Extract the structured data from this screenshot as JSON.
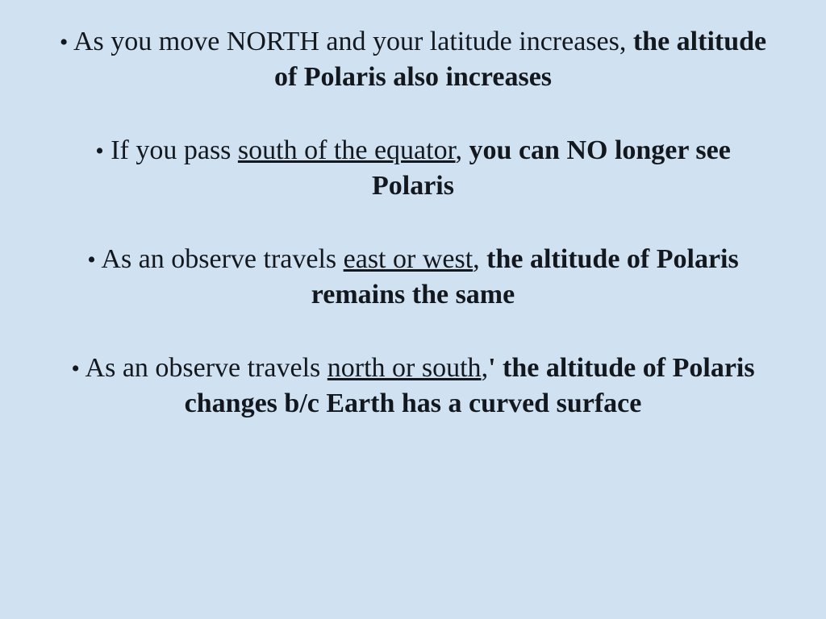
{
  "slide": {
    "background_color": "#d0e2f2",
    "text_color": "#13181e",
    "font_family": "Century Schoolbook",
    "base_fontsize_pt": 26,
    "bullets": [
      {
        "segments": [
          {
            "text": "As you move NORTH and your latitude increases, ",
            "bold": false,
            "underline": false
          },
          {
            "text": "the altitude of Polaris also increases",
            "bold": true,
            "underline": false
          }
        ]
      },
      {
        "segments": [
          {
            "text": "If you pass ",
            "bold": false,
            "underline": false
          },
          {
            "text": "south of the equator",
            "bold": false,
            "underline": true
          },
          {
            "text": ", ",
            "bold": false,
            "underline": false
          },
          {
            "text": "you can NO longer see Polaris",
            "bold": true,
            "underline": false
          }
        ]
      },
      {
        "segments": [
          {
            "text": "As an observe travels ",
            "bold": false,
            "underline": false
          },
          {
            "text": "east or west",
            "bold": false,
            "underline": true
          },
          {
            "text": ", ",
            "bold": false,
            "underline": false
          },
          {
            "text": "the altitude of Polaris remains the same",
            "bold": true,
            "underline": false
          }
        ]
      },
      {
        "segments": [
          {
            "text": "As an observe travels ",
            "bold": false,
            "underline": false
          },
          {
            "text": "north or south",
            "bold": false,
            "underline": true
          },
          {
            "text": ",",
            "bold": false,
            "underline": false
          },
          {
            "text": "' the altitude of Polaris changes b/c Earth has a curved surface",
            "bold": true,
            "underline": false
          }
        ]
      }
    ]
  }
}
